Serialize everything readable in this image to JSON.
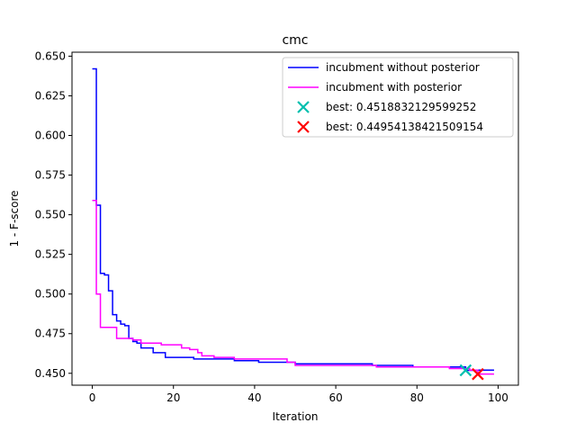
{
  "chart_data": {
    "type": "line",
    "title": "cmc",
    "xlabel": "Iteration",
    "ylabel": "1 - F-score",
    "xlim": [
      -5,
      105
    ],
    "ylim": [
      0.4425,
      0.6525
    ],
    "xticks": [
      0,
      20,
      40,
      60,
      80,
      100
    ],
    "yticks": [
      0.45,
      0.475,
      0.5,
      0.525,
      0.55,
      0.575,
      0.6,
      0.625,
      0.65
    ],
    "grid": false,
    "legend_position": "top-right",
    "series": [
      {
        "name": "incubment without posterior",
        "color": "#0000ff",
        "step": "post",
        "x": [
          0,
          1,
          2,
          3,
          4,
          5,
          6,
          7,
          8,
          9,
          10,
          11,
          12,
          14,
          15,
          17,
          18,
          20,
          25,
          35,
          41,
          50,
          55,
          69,
          79,
          89,
          92,
          95,
          99
        ],
        "y": [
          0.642,
          0.556,
          0.513,
          0.512,
          0.502,
          0.487,
          0.483,
          0.481,
          0.48,
          0.472,
          0.47,
          0.469,
          0.466,
          0.466,
          0.463,
          0.463,
          0.46,
          0.46,
          0.459,
          0.458,
          0.457,
          0.456,
          0.456,
          0.455,
          0.454,
          0.454,
          0.4519,
          0.452,
          0.452
        ]
      },
      {
        "name": "incubment with posterior",
        "color": "#ff00ff",
        "step": "post",
        "x": [
          0,
          1,
          2,
          3,
          4,
          5,
          6,
          7,
          8,
          10,
          12,
          14,
          17,
          20,
          22,
          23,
          24,
          25,
          26,
          27,
          30,
          32,
          35,
          45,
          48,
          50,
          52,
          60,
          70,
          80,
          88,
          93,
          95,
          99
        ],
        "y": [
          0.559,
          0.5,
          0.479,
          0.479,
          0.479,
          0.479,
          0.472,
          0.472,
          0.472,
          0.471,
          0.469,
          0.469,
          0.468,
          0.468,
          0.466,
          0.466,
          0.465,
          0.465,
          0.463,
          0.461,
          0.46,
          0.46,
          0.459,
          0.459,
          0.457,
          0.455,
          0.455,
          0.455,
          0.454,
          0.454,
          0.453,
          0.452,
          0.4495,
          0.4495
        ]
      }
    ],
    "best_markers": [
      {
        "label": "best: 0.4518832129599252",
        "x": 92,
        "y": 0.4519,
        "color": "#00bfae"
      },
      {
        "label": "best: 0.44954138421509154",
        "x": 95,
        "y": 0.4495,
        "color": "#ff0000"
      }
    ]
  }
}
